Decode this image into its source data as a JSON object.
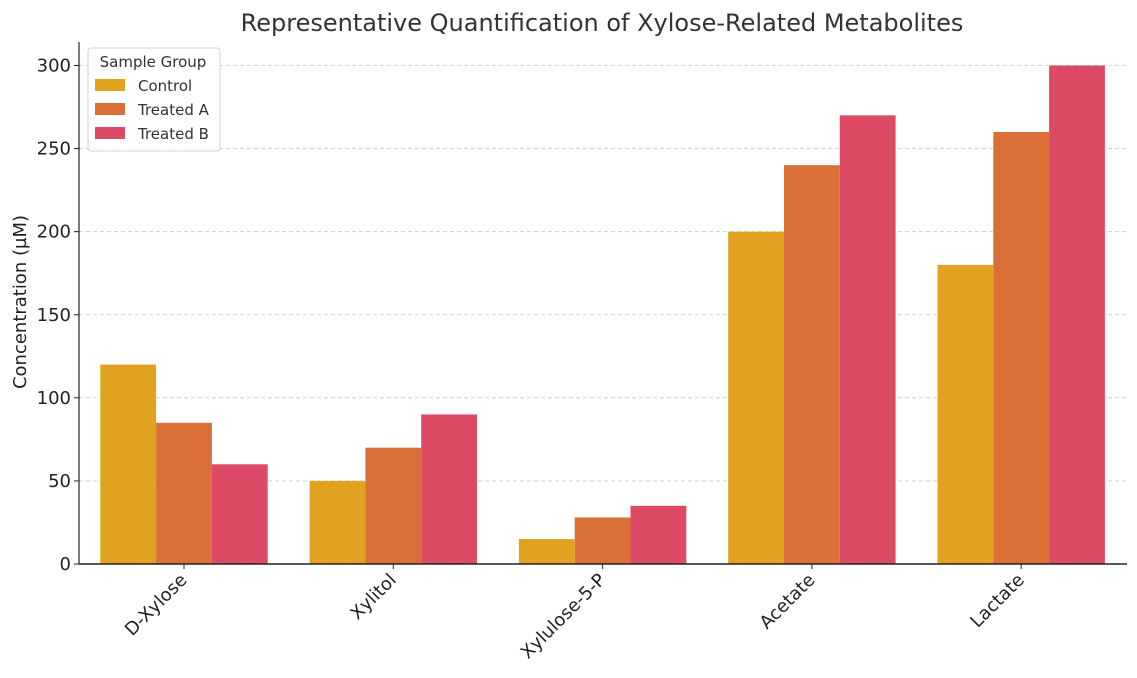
{
  "chart_data": {
    "type": "bar",
    "title": "Representative Quantification of Xylose-Related Metabolites",
    "xlabel": "",
    "ylabel": "Concentration (µM)",
    "categories": [
      "D-Xylose",
      "Xylitol",
      "Xylulose-5-P",
      "Acetate",
      "Lactate"
    ],
    "series": [
      {
        "name": "Control",
        "color": "#E0A21F",
        "values": [
          120,
          50,
          15,
          200,
          180
        ]
      },
      {
        "name": "Treated A",
        "color": "#DB6F3A",
        "values": [
          85,
          70,
          28,
          240,
          260
        ]
      },
      {
        "name": "Treated B",
        "color": "#DC4A66",
        "values": [
          60,
          90,
          35,
          270,
          300
        ]
      }
    ],
    "ylim": [
      0,
      315
    ],
    "yticks": [
      0,
      50,
      100,
      150,
      200,
      250,
      300
    ],
    "grid": "horizontal dashed",
    "legend": {
      "title": "Sample Group",
      "placement": "top-left"
    }
  }
}
